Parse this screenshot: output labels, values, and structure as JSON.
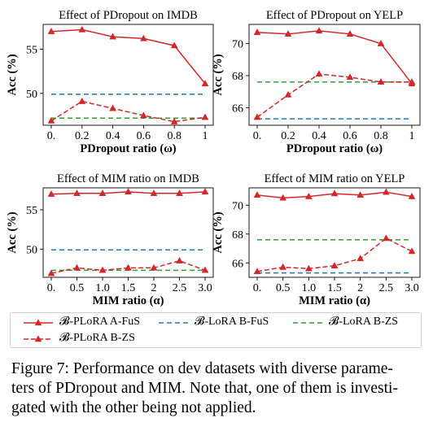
{
  "colors": {
    "fus_plora": "#d62728",
    "fus_lora": "#1f77b4",
    "zs_lora": "#2ca02c"
  },
  "legend": {
    "items": [
      {
        "key": "fus_plora",
        "label": "𝓑-PLoRA A-FuS",
        "style": "solid",
        "marker": "triangle"
      },
      {
        "key": "fus_lora",
        "label": "𝓑-LoRA B-FuS",
        "style": "dashed",
        "marker": "none"
      },
      {
        "key": "zs_lora",
        "label": "𝓑-LoRA B-ZS",
        "style": "dashed",
        "marker": "none"
      },
      {
        "key": "zs_plora",
        "label": "𝓑-PLoRA B-ZS",
        "style": "dashed",
        "marker": "triangle"
      }
    ]
  },
  "caption": {
    "lines": [
      "Figure 7: Performance on dev datasets with diverse parame-",
      "ters of PDropout and MIM. Note that, one of them is investi-",
      "gated with the other being not applied."
    ]
  },
  "chart_data": [
    {
      "type": "line",
      "title": "Effect of PDropout on IMDB",
      "xlabel": "PDropout ratio (ω)",
      "ylabel": "Acc (%)",
      "x": [
        0,
        0.2,
        0.4,
        0.6,
        0.8,
        1
      ],
      "xtick_labels": [
        "0.",
        "0.2",
        "0.4",
        "0.6",
        "0.8",
        "1"
      ],
      "ylim": [
        46.4,
        57.8
      ],
      "yticks": [
        50,
        55
      ],
      "series": [
        {
          "key": "fus_plora",
          "values": [
            57.0,
            57.2,
            56.4,
            56.2,
            55.4,
            51.1
          ]
        },
        {
          "key": "zs_plora",
          "values": [
            46.9,
            49.1,
            48.3,
            47.5,
            46.8,
            47.3
          ]
        },
        {
          "key": "fus_lora",
          "values": [
            49.9,
            49.9,
            49.9,
            49.9,
            49.9,
            49.9
          ]
        },
        {
          "key": "zs_lora",
          "values": [
            47.2,
            47.2,
            47.2,
            47.2,
            47.2,
            47.2
          ]
        }
      ]
    },
    {
      "type": "line",
      "title": "Effect of PDropout on YELP",
      "xlabel": "PDropout ratio (ω)",
      "ylabel": "Acc (%)",
      "x": [
        0,
        0.2,
        0.4,
        0.6,
        0.8,
        1
      ],
      "xtick_labels": [
        "0.",
        "0.2",
        "0.4",
        "0.6",
        "0.8",
        "1"
      ],
      "ylim": [
        64.9,
        71.2
      ],
      "yticks": [
        66,
        68,
        70
      ],
      "series": [
        {
          "key": "fus_plora",
          "values": [
            70.7,
            70.6,
            70.8,
            70.6,
            70.0,
            67.5
          ]
        },
        {
          "key": "zs_plora",
          "values": [
            65.4,
            66.8,
            68.1,
            67.9,
            67.6,
            67.6
          ]
        },
        {
          "key": "fus_lora",
          "values": [
            65.3,
            65.3,
            65.3,
            65.3,
            65.3,
            65.3
          ]
        },
        {
          "key": "zs_lora",
          "values": [
            67.6,
            67.6,
            67.6,
            67.6,
            67.6,
            67.6
          ]
        }
      ]
    },
    {
      "type": "line",
      "title": "Effect of MIM ratio on IMDB",
      "xlabel": "MIM ratio (α)",
      "ylabel": "Acc (%)",
      "x": [
        0,
        0.5,
        1,
        1.5,
        2,
        2.5,
        3
      ],
      "xtick_labels": [
        "0.",
        "0.5",
        "1.0",
        "1.5",
        "2",
        "2.5",
        "3.0"
      ],
      "ylim": [
        46.4,
        57.8
      ],
      "yticks": [
        50,
        55
      ],
      "series": [
        {
          "key": "fus_plora",
          "values": [
            57.0,
            57.1,
            57.1,
            57.3,
            57.1,
            57.1,
            57.3
          ]
        },
        {
          "key": "zs_plora",
          "values": [
            46.9,
            47.6,
            47.3,
            47.6,
            47.6,
            48.5,
            47.3
          ]
        },
        {
          "key": "fus_lora",
          "values": [
            49.9,
            49.9,
            49.9,
            49.9,
            49.9,
            49.9,
            49.9
          ]
        },
        {
          "key": "zs_lora",
          "values": [
            47.3,
            47.3,
            47.3,
            47.3,
            47.3,
            47.3,
            47.3
          ]
        }
      ]
    },
    {
      "type": "line",
      "title": "Effect of MIM ratio on YELP",
      "xlabel": "MIM ratio (α)",
      "ylabel": "Acc (%)",
      "x": [
        0,
        0.5,
        1,
        1.5,
        2,
        2.5,
        3
      ],
      "xtick_labels": [
        "0.",
        "0.5",
        "1.0",
        "1.5",
        "2",
        "2.5",
        "3.0"
      ],
      "ylim": [
        65.0,
        71.2
      ],
      "yticks": [
        66,
        68,
        70
      ],
      "series": [
        {
          "key": "fus_plora",
          "values": [
            70.7,
            70.5,
            70.6,
            70.8,
            70.7,
            70.9,
            70.6
          ]
        },
        {
          "key": "zs_plora",
          "values": [
            65.4,
            65.7,
            65.6,
            65.8,
            66.3,
            67.7,
            66.8
          ]
        },
        {
          "key": "fus_lora",
          "values": [
            65.3,
            65.3,
            65.3,
            65.3,
            65.3,
            65.3,
            65.3
          ]
        },
        {
          "key": "zs_lora",
          "values": [
            67.6,
            67.6,
            67.6,
            67.6,
            67.6,
            67.6,
            67.6
          ]
        }
      ]
    }
  ]
}
